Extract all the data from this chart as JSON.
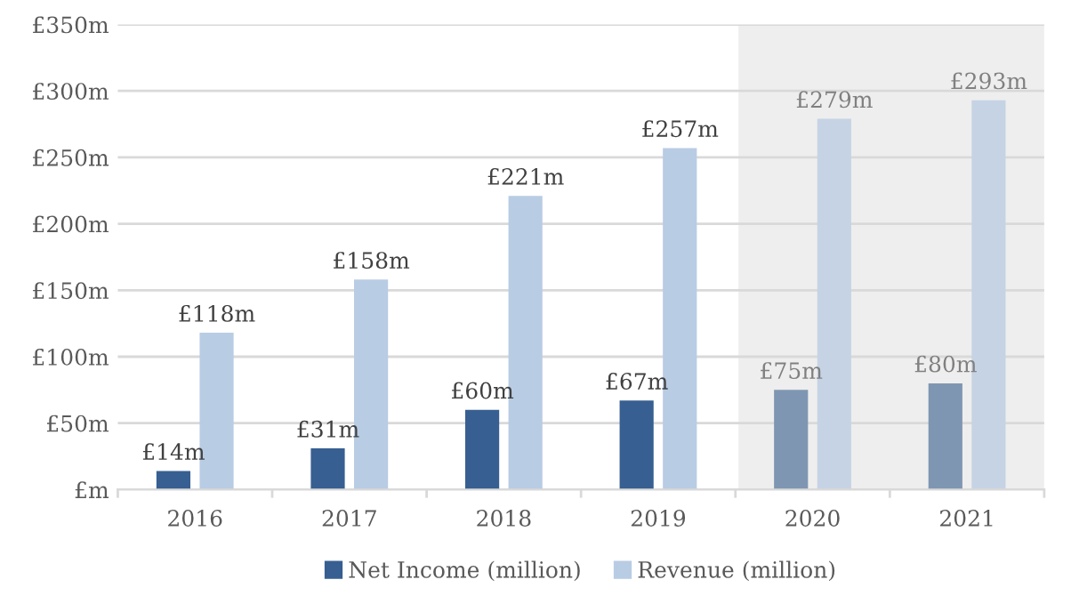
{
  "chart_data": {
    "type": "bar",
    "categories": [
      "2016",
      "2017",
      "2018",
      "2019",
      "2020",
      "2021"
    ],
    "series": [
      {
        "name": "Net Income (million)",
        "color": "#375f91",
        "colors": [
          "#375f91",
          "#375f91",
          "#375f91",
          "#375f91",
          "#7f96b2",
          "#7f96b2"
        ],
        "values": [
          14,
          31,
          60,
          67,
          75,
          80
        ],
        "value_labels": [
          "£14m",
          "£31m",
          "£60m",
          "£67m",
          "£75m",
          "£80m"
        ]
      },
      {
        "name": "Revenue (million)",
        "color": "#b8cce4",
        "colors": [
          "#b8cce4",
          "#b8cce4",
          "#b8cce4",
          "#b8cce4",
          "#c5d3e4",
          "#c5d3e4"
        ],
        "values": [
          118,
          158,
          221,
          257,
          279,
          293
        ],
        "value_labels": [
          "£118m",
          "£158m",
          "£221m",
          "£257m",
          "£279m",
          "£293m"
        ]
      }
    ],
    "ylim": [
      0,
      350
    ],
    "yticks": [
      {
        "value": 0,
        "label": "£m"
      },
      {
        "value": 50,
        "label": "£50m"
      },
      {
        "value": 100,
        "label": "£100m"
      },
      {
        "value": 150,
        "label": "£150m"
      },
      {
        "value": 200,
        "label": "£200m"
      },
      {
        "value": 250,
        "label": "£250m"
      },
      {
        "value": 300,
        "label": "£300m"
      },
      {
        "value": 350,
        "label": "£350m"
      }
    ],
    "bands": [
      {
        "axis": "x",
        "from": "2020",
        "to": "2021",
        "color": "#eeeeee"
      }
    ],
    "grid": "y",
    "legend": "bottom"
  }
}
